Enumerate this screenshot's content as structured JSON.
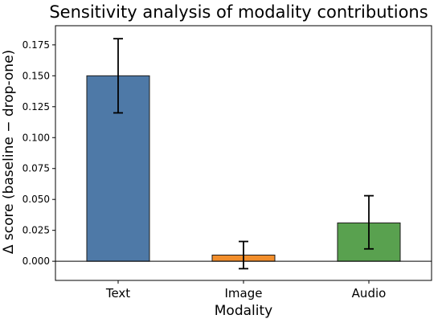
{
  "chart_data": {
    "type": "bar",
    "title": "Sensitivity analysis of modality contributions",
    "xlabel": "Modality",
    "ylabel": "Δ score (baseline − drop-one)",
    "categories": [
      "Text",
      "Image",
      "Audio"
    ],
    "values": [
      0.15,
      0.005,
      0.031
    ],
    "error_bars": [
      {
        "low": 0.12,
        "high": 0.18
      },
      {
        "low": -0.006,
        "high": 0.016
      },
      {
        "low": 0.01,
        "high": 0.053
      }
    ],
    "colors": [
      "#4e79a7",
      "#f28e2b",
      "#59a14f"
    ],
    "edge_color": "#1a1a1a",
    "ylim": [
      -0.0155,
      0.1905
    ],
    "yticks": [
      0.0,
      0.025,
      0.05,
      0.075,
      0.1,
      0.125,
      0.15,
      0.175
    ],
    "ytick_labels": [
      "0.000",
      "0.025",
      "0.050",
      "0.075",
      "0.100",
      "0.125",
      "0.150",
      "0.175"
    ],
    "zero_line": true,
    "grid": false,
    "legend": "none"
  }
}
